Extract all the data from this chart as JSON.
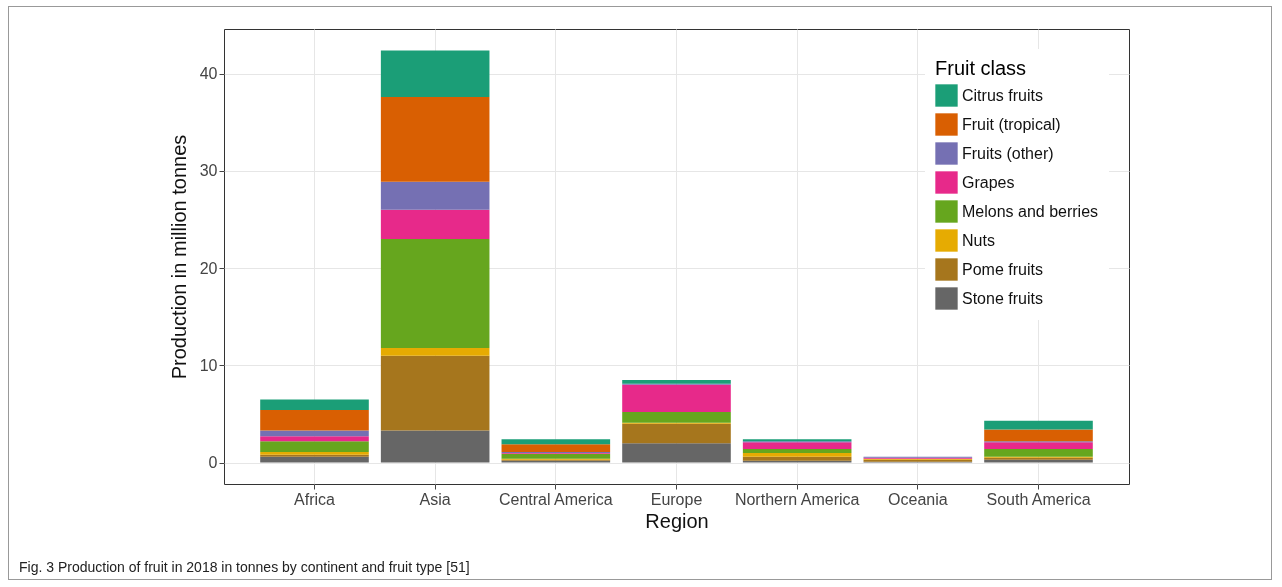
{
  "chart_data": {
    "type": "bar",
    "stacked": true,
    "xlabel": "Region",
    "ylabel": "Production in million tonnes",
    "legend_title": "Fruit class",
    "legend": "top right",
    "grid": true,
    "categories": [
      "Africa",
      "Asia",
      "Central America",
      "Europe",
      "Northern America",
      "Oceania",
      "South America"
    ],
    "ylim": [
      -2.2,
      44.6
    ],
    "yticks": [
      0,
      10,
      20,
      30,
      40
    ],
    "series": [
      {
        "name": "Stone fruits",
        "color": "#666666",
        "values": [
          0.6,
          3.3,
          0.2,
          2.0,
          0.2,
          0.1,
          0.3
        ]
      },
      {
        "name": "Pome fruits",
        "color": "#a6761d",
        "values": [
          0.2,
          7.7,
          0.1,
          2.0,
          0.4,
          0.2,
          0.2
        ]
      },
      {
        "name": "Nuts",
        "color": "#e6ab02",
        "values": [
          0.3,
          0.8,
          0.1,
          0.1,
          0.4,
          0.1,
          0.1
        ]
      },
      {
        "name": "Melons and berries",
        "color": "#66a61e",
        "values": [
          1.1,
          11.2,
          0.5,
          1.1,
          0.4,
          0.0,
          0.8
        ]
      },
      {
        "name": "Grapes",
        "color": "#e7298a",
        "values": [
          0.5,
          3.0,
          0.1,
          2.8,
          0.7,
          0.1,
          0.7
        ]
      },
      {
        "name": "Fruits (other)",
        "color": "#7570b3",
        "values": [
          0.6,
          2.9,
          0.1,
          0.1,
          0.1,
          0.1,
          0.1
        ]
      },
      {
        "name": "Fruit (tropical)",
        "color": "#d95f02",
        "values": [
          2.1,
          8.7,
          0.8,
          0.0,
          0.0,
          0.0,
          1.2
        ]
      },
      {
        "name": "Citrus fruits",
        "color": "#1b9e77",
        "values": [
          1.1,
          4.8,
          0.5,
          0.4,
          0.2,
          0.0,
          0.9
        ]
      }
    ],
    "annotations": [
      "Fig. 3  Production of fruit in 2018 in tonnes by continent and fruit type [51]"
    ]
  }
}
